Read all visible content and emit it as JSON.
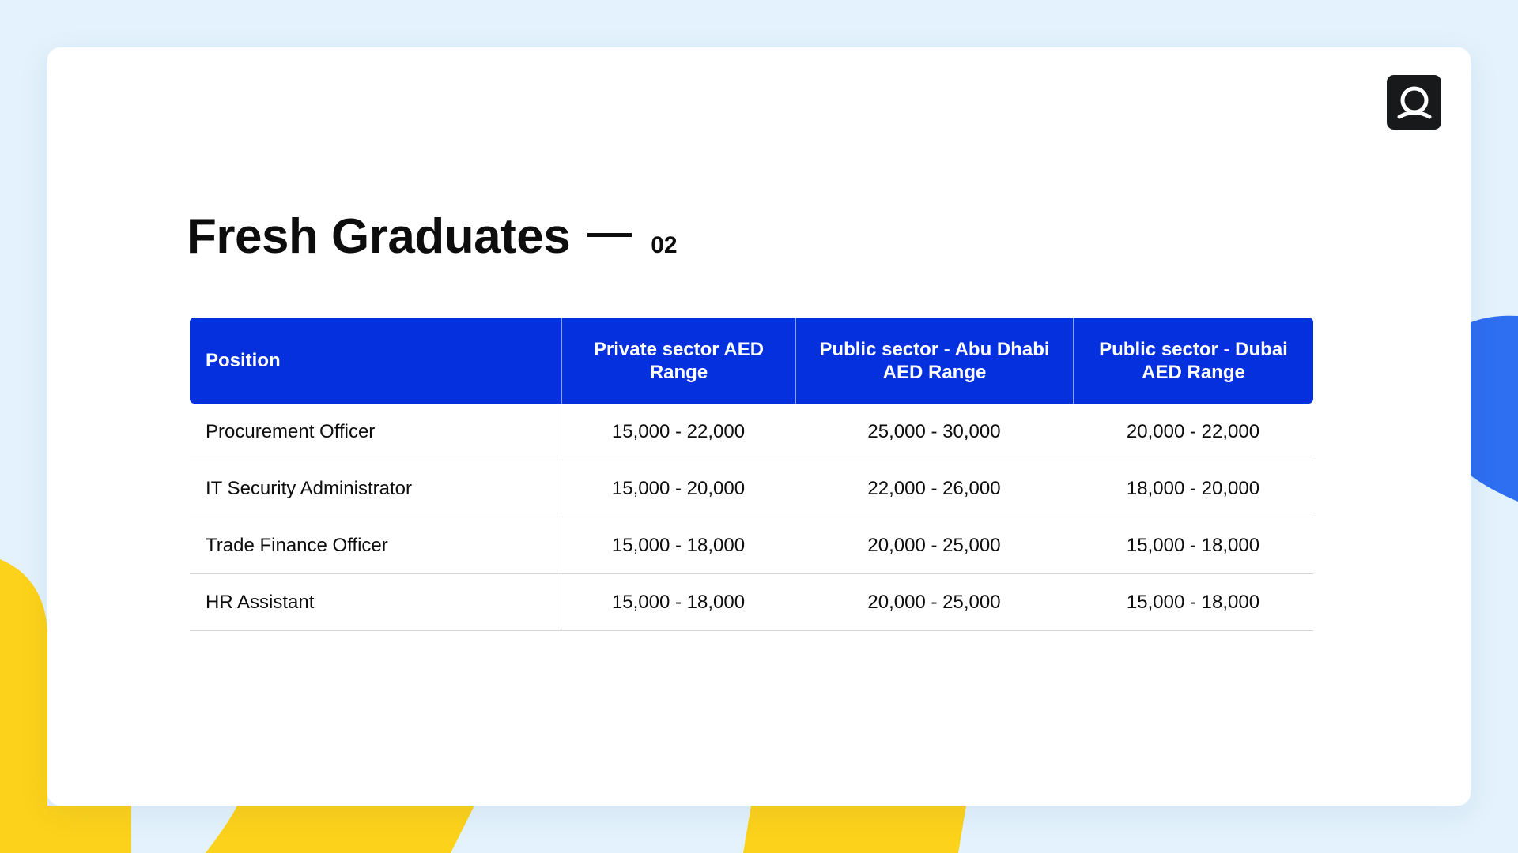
{
  "colors": {
    "background": "#e3f2fc",
    "card": "#ffffff",
    "header_blue": "#0530dd",
    "accent_yellow": "#fdd21a",
    "accent_blue": "#2e6ef0",
    "logo_bg": "#17191b"
  },
  "logo": {
    "icon": "q-logo-icon"
  },
  "heading": {
    "title": "Fresh Graduates",
    "number": "02"
  },
  "table": {
    "headers": [
      "Position",
      "Private sector AED Range",
      "Public sector - Abu Dhabi AED Range",
      "Public sector - Dubai AED Range"
    ],
    "rows": [
      [
        "Procurement Officer",
        "15,000 - 22,000",
        "25,000 - 30,000",
        "20,000 - 22,000"
      ],
      [
        "IT Security Administrator",
        "15,000 - 20,000",
        "22,000 - 26,000",
        "18,000 - 20,000"
      ],
      [
        "Trade Finance Officer",
        "15,000 - 18,000",
        "20,000 - 25,000",
        "15,000 - 18,000"
      ],
      [
        "HR Assistant",
        "15,000 - 18,000",
        "20,000 - 25,000",
        "15,000 - 18,000"
      ]
    ]
  }
}
